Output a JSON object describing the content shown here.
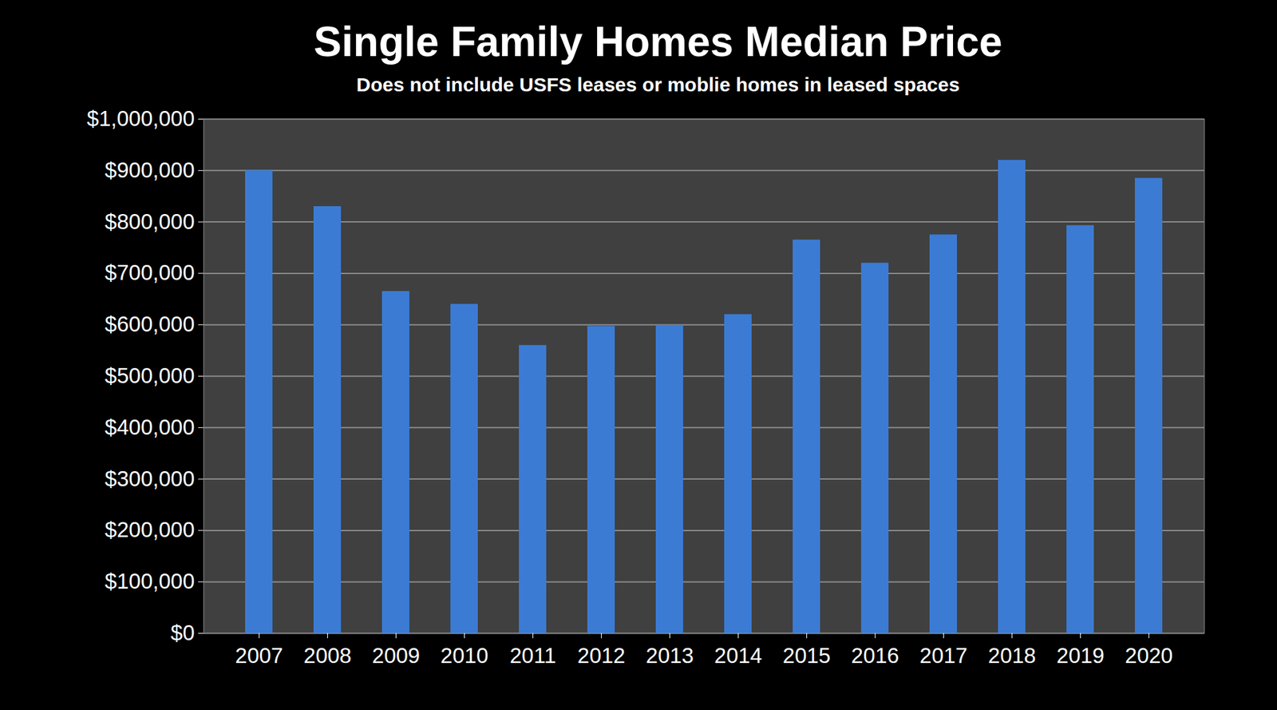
{
  "chart_data": {
    "type": "bar",
    "title": "Single Family Homes Median Price",
    "subtitle": "Does not include USFS leases or moblie homes in leased spaces",
    "categories": [
      "2007",
      "2008",
      "2009",
      "2010",
      "2011",
      "2012",
      "2013",
      "2014",
      "2015",
      "2016",
      "2017",
      "2018",
      "2019",
      "2020"
    ],
    "values": [
      900000,
      830000,
      665000,
      640000,
      560000,
      597000,
      599000,
      620000,
      765000,
      720000,
      775000,
      920000,
      793000,
      885000
    ],
    "color": "#3b7bd4",
    "ylim": [
      0,
      1000000
    ],
    "yticks": [
      {
        "value": 0,
        "label": "$0"
      },
      {
        "value": 100000,
        "label": "$100,000"
      },
      {
        "value": 200000,
        "label": "$200,000"
      },
      {
        "value": 300000,
        "label": "$300,000"
      },
      {
        "value": 400000,
        "label": "$400,000"
      },
      {
        "value": 500000,
        "label": "$500,000"
      },
      {
        "value": 600000,
        "label": "$600,000"
      },
      {
        "value": 700000,
        "label": "$700,000"
      },
      {
        "value": 800000,
        "label": "$800,000"
      },
      {
        "value": 900000,
        "label": "$900,000"
      },
      {
        "value": 1000000,
        "label": "$1,000,000"
      }
    ],
    "grid": true
  }
}
